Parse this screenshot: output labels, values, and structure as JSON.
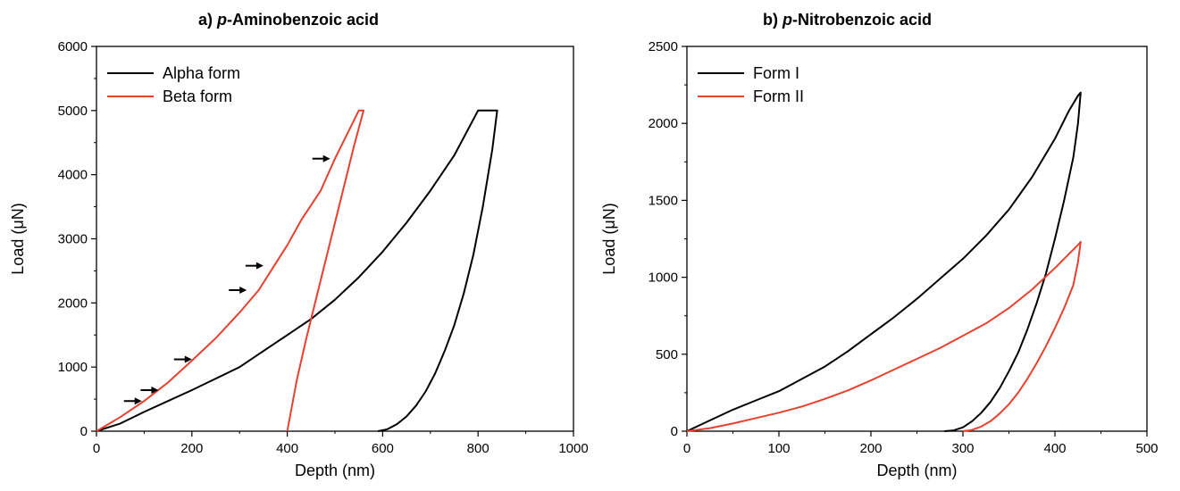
{
  "chart_data": [
    {
      "type": "line",
      "title_prefix": "a) ",
      "title_italic": "p",
      "title_rest": "-Aminobenzoic acid",
      "xlabel": "Depth (nm)",
      "ylabel": "Load (μN)",
      "xlim": [
        0,
        1000
      ],
      "ylim": [
        0,
        6000
      ],
      "xticks": [
        0,
        200,
        400,
        600,
        800,
        1000
      ],
      "yticks": [
        0,
        1000,
        2000,
        3000,
        4000,
        5000,
        6000
      ],
      "legend_position": "top-left",
      "series": [
        {
          "name": "Alpha form",
          "color": "#000000",
          "x": [
            0,
            50,
            100,
            150,
            200,
            250,
            300,
            350,
            400,
            450,
            500,
            550,
            600,
            650,
            700,
            750,
            800,
            840,
            840,
            830,
            810,
            790,
            770,
            750,
            730,
            710,
            690,
            670,
            650,
            630,
            610,
            590
          ],
          "y": [
            0,
            120,
            300,
            470,
            640,
            820,
            1000,
            1250,
            1500,
            1750,
            2050,
            2400,
            2800,
            3250,
            3750,
            4300,
            5000,
            5000,
            5000,
            4400,
            3500,
            2750,
            2150,
            1650,
            1250,
            900,
            620,
            400,
            230,
            110,
            30,
            0
          ]
        },
        {
          "name": "Beta form",
          "color": "#e8402f",
          "x": [
            0,
            50,
            100,
            150,
            200,
            250,
            300,
            340,
            370,
            400,
            430,
            470,
            500,
            530,
            550,
            560,
            560,
            540,
            520,
            500,
            480,
            460,
            440,
            420,
            400
          ],
          "y": [
            0,
            220,
            470,
            760,
            1100,
            1450,
            1850,
            2200,
            2550,
            2900,
            3300,
            3750,
            4250,
            4700,
            5000,
            5000,
            5000,
            4450,
            3850,
            3250,
            2650,
            2050,
            1450,
            800,
            0
          ]
        }
      ],
      "annotations": [
        {
          "type": "arrow",
          "x": 110,
          "y": 470
        },
        {
          "type": "arrow",
          "x": 145,
          "y": 640
        },
        {
          "type": "arrow",
          "x": 215,
          "y": 1120
        },
        {
          "type": "arrow",
          "x": 330,
          "y": 2200
        },
        {
          "type": "arrow",
          "x": 365,
          "y": 2580
        },
        {
          "type": "arrow",
          "x": 505,
          "y": 4250
        }
      ]
    },
    {
      "type": "line",
      "title_prefix": "b) ",
      "title_italic": "p",
      "title_rest": "-Nitrobenzoic acid",
      "xlabel": "Depth (nm)",
      "ylabel": "Load (μN)",
      "xlim": [
        0,
        500
      ],
      "ylim": [
        0,
        2500
      ],
      "xticks": [
        0,
        100,
        200,
        300,
        400,
        500
      ],
      "yticks": [
        0,
        500,
        1000,
        1500,
        2000,
        2500
      ],
      "legend_position": "top-left",
      "series": [
        {
          "name": "Form I",
          "color": "#000000",
          "x": [
            0,
            25,
            50,
            75,
            100,
            125,
            150,
            175,
            200,
            225,
            250,
            275,
            300,
            325,
            350,
            375,
            400,
            415,
            425,
            428,
            428,
            425,
            420,
            410,
            400,
            390,
            380,
            370,
            360,
            350,
            340,
            330,
            320,
            310,
            300,
            290,
            280
          ],
          "y": [
            0,
            70,
            140,
            200,
            260,
            340,
            420,
            520,
            630,
            740,
            860,
            990,
            1120,
            1270,
            1440,
            1650,
            1900,
            2080,
            2180,
            2200,
            2200,
            2000,
            1780,
            1500,
            1250,
            1020,
            830,
            660,
            510,
            390,
            280,
            190,
            120,
            65,
            25,
            5,
            0
          ]
        },
        {
          "name": "Form II",
          "color": "#e8402f",
          "x": [
            0,
            25,
            50,
            75,
            100,
            125,
            150,
            175,
            200,
            225,
            250,
            275,
            300,
            325,
            350,
            375,
            400,
            415,
            425,
            428,
            428,
            425,
            420,
            410,
            400,
            390,
            380,
            370,
            360,
            350,
            340,
            330,
            320,
            310,
            300
          ],
          "y": [
            0,
            20,
            50,
            85,
            120,
            160,
            210,
            265,
            330,
            400,
            470,
            540,
            620,
            700,
            800,
            920,
            1060,
            1150,
            1210,
            1230,
            1230,
            1100,
            950,
            800,
            670,
            550,
            440,
            340,
            250,
            175,
            115,
            65,
            30,
            8,
            0
          ]
        }
      ]
    }
  ]
}
